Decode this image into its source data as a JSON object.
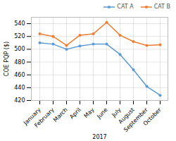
{
  "chart_data": {
    "type": "line",
    "categories": [
      "January",
      "February",
      "March",
      "April",
      "May",
      "June",
      "July",
      "August",
      "September",
      "October"
    ],
    "series": [
      {
        "name": "CAT A",
        "color": "#5b9bd5",
        "marker": "circle",
        "values": [
          510,
          508,
          500,
          505,
          508,
          508,
          492,
          468,
          442,
          428
        ]
      },
      {
        "name": "CAT B",
        "color": "#ed7d31",
        "marker": "circle",
        "values": [
          524,
          520,
          506,
          522,
          524,
          542,
          522,
          512,
          506,
          507
        ]
      }
    ],
    "xlabel": "2017",
    "ylabel": "COE PQP ($)",
    "ylim": [
      420,
      550
    ],
    "yticks": [
      420,
      440,
      460,
      480,
      500,
      520,
      540
    ],
    "grid": true,
    "legend": "upper right"
  }
}
